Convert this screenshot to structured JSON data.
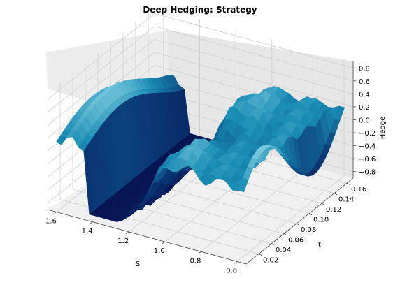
{
  "chart_data": {
    "type": "surface",
    "title": "Deep Hedging: Strategy",
    "xlabel": "S",
    "ylabel": "t",
    "zlabel": "Hedge",
    "x_ticks": [
      1.6,
      1.4,
      1.2,
      1.0,
      0.8,
      0.6
    ],
    "x_tick_labels": [
      "1.6",
      "1.4",
      "1.2",
      "1.0",
      "0.8",
      "0.6"
    ],
    "y_ticks": [
      0.02,
      0.04,
      0.06,
      0.08,
      0.1,
      0.12,
      0.14,
      0.16
    ],
    "y_tick_labels": [
      "0.02",
      "0.04",
      "0.06",
      "0.08",
      "0.10",
      "0.12",
      "0.14",
      "0.16"
    ],
    "z_ticks": [
      -0.8,
      -0.6,
      -0.4,
      -0.2,
      0.0,
      0.2,
      0.4,
      0.6,
      0.8
    ],
    "z_tick_labels": [
      "−0.8",
      "−0.6",
      "−0.4",
      "−0.2",
      "0.0",
      "0.2",
      "0.4",
      "0.6",
      "0.8"
    ],
    "xlim": [
      0.55,
      1.65
    ],
    "ylim": [
      0.0,
      0.17
    ],
    "zlim": [
      -0.9,
      0.9
    ],
    "colormap": "ocean-like: navy to teal to white",
    "colors": {
      "low": "#0a1a5c",
      "mid": "#1f8fb3",
      "high": "#eef8fb",
      "pane": "#f2f2f2"
    },
    "grid": true
  }
}
